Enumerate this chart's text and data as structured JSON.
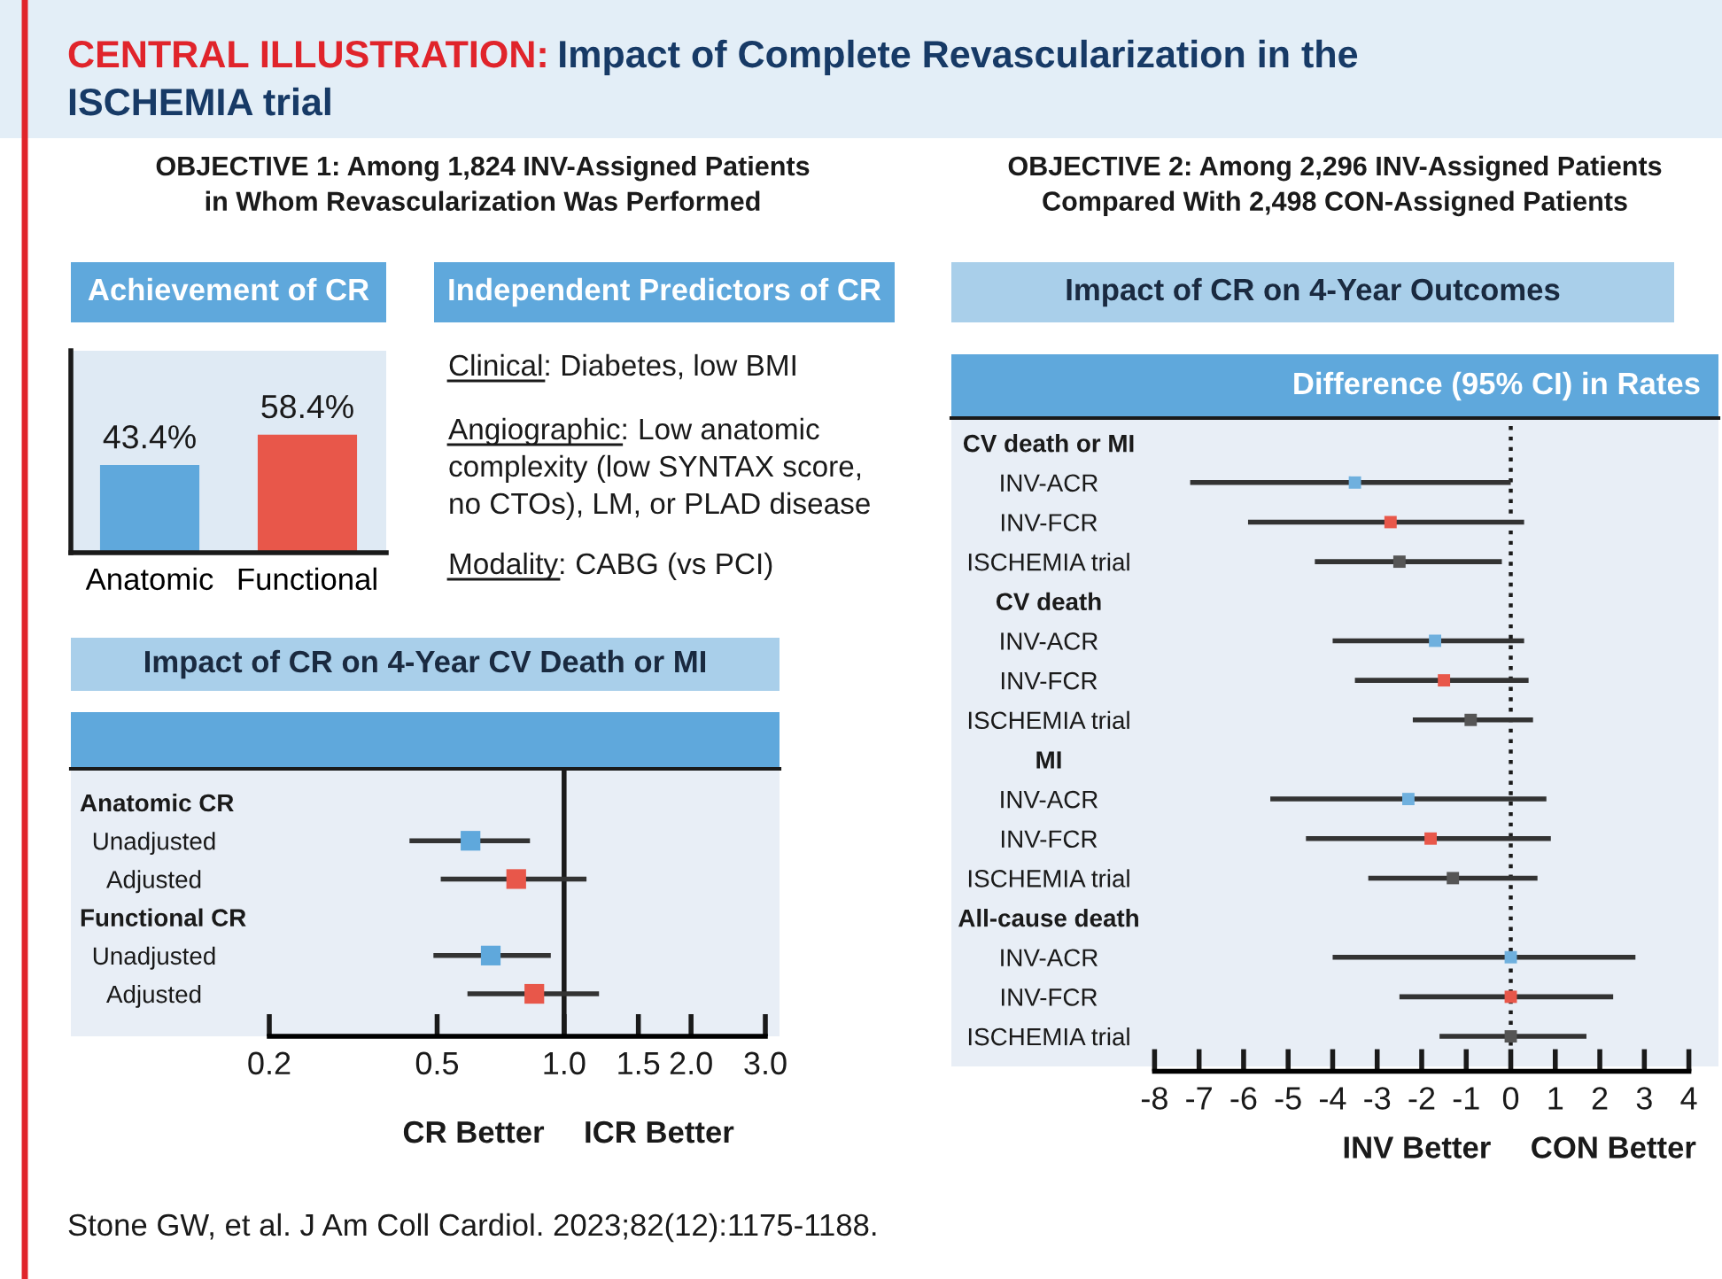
{
  "chart_data": [
    {
      "type": "other",
      "title": "CENTRAL ILLUSTRATION: Impact of Complete Revascularization in the\nISCHEMIA trial",
      "annotations": [
        "Stone GW, et al. J Am Coll Cardiol. 2023;82(12):1175-1188."
      ]
    },
    {
      "type": "bar",
      "subtitle": "OBJECTIVE 1: Among 1,824 INV-Assigned Patients\nin Whom Revascularization Was Performed",
      "title": "Achievement of CR",
      "categories": [
        "Anatomic",
        "Functional"
      ],
      "values": [
        43.4,
        58.4
      ],
      "colors": [
        "#5fa8dc",
        "#e8574a"
      ],
      "value_labels": [
        "43.4%",
        "58.4%"
      ],
      "ylim": [
        0,
        100
      ],
      "tick_labels": "x"
    },
    {
      "type": "other",
      "title": "Independent Predictors of CR",
      "annotations": [
        "Clinical: Diabetes, low BMI",
        "Angiographic: Low anatomic\ncomplexity (low SYNTAX score,\nno CTOs), LM, or PLAD disease",
        "Modality: CABG (vs PCI)"
      ]
    },
    {
      "type": "scatter",
      "orientation": "horizontal",
      "title": "Impact of CR on 4-Year CV Death or MI",
      "categories": [
        "Anatomic CR",
        "Unadjusted",
        "Adjusted",
        "Functional CR",
        "Unadjusted",
        "Adjusted"
      ],
      "values": [
        null,
        0.6,
        0.77,
        null,
        0.67,
        0.85
      ],
      "errors": [
        null,
        [
          0.43,
          0.83
        ],
        [
          0.51,
          1.13
        ],
        null,
        [
          0.49,
          0.93
        ],
        [
          0.59,
          1.21
        ]
      ],
      "colors": [
        null,
        "#5fa8dc",
        "#e8574a",
        null,
        "#5fa8dc",
        "#e8574a"
      ],
      "log": "x",
      "xlim": [
        0.2,
        3.0
      ],
      "xticks": [
        0.2,
        0.5,
        {
          "value": 1.0,
          "label": "1.0"
        },
        1.5,
        {
          "value": 2.0,
          "label": "2.0"
        },
        {
          "value": 3.0,
          "label": "3.0"
        }
      ],
      "ref_lines": [
        {
          "axis": "x",
          "value": 1,
          "color": "#1a1a1a",
          "line_style": "solid"
        }
      ],
      "marker": "square",
      "annotations": [
        "CR Better",
        "ICR Better"
      ]
    },
    {
      "type": "scatter",
      "orientation": "horizontal",
      "subtitle": "OBJECTIVE 2: Among 2,296 INV-Assigned Patients\nCompared With 2,498 CON-Assigned Patients",
      "title": "Impact of CR on 4-Year Outcomes",
      "xlabel": "Difference (95% CI) in Rates",
      "categories": [
        "CV death or MI",
        "INV-ACR",
        "INV-FCR",
        "ISCHEMIA trial",
        "CV death",
        "INV-ACR",
        "INV-FCR",
        "ISCHEMIA trial",
        "MI",
        "INV-ACR",
        "INV-FCR",
        "ISCHEMIA trial",
        "All-cause death",
        "INV-ACR",
        "INV-FCR",
        "ISCHEMIA trial"
      ],
      "values": [
        null,
        -3.5,
        -2.7,
        -2.5,
        null,
        -1.7,
        -1.5,
        -0.9,
        null,
        -2.3,
        -1.8,
        -1.3,
        null,
        0.0,
        0.0,
        0.0
      ],
      "errors": [
        null,
        [
          -7.2,
          0.0
        ],
        [
          -5.9,
          0.3
        ],
        [
          -4.4,
          -0.2
        ],
        null,
        [
          -4.0,
          0.3
        ],
        [
          -3.5,
          0.4
        ],
        [
          -2.2,
          0.5
        ],
        null,
        [
          -5.4,
          0.8
        ],
        [
          -4.6,
          0.9
        ],
        [
          -3.2,
          0.6
        ],
        null,
        [
          -4.0,
          2.8
        ],
        [
          -2.5,
          2.3
        ],
        [
          -1.6,
          1.7
        ]
      ],
      "colors": [
        null,
        "#6fb0de",
        "#e8574a",
        "#555555",
        null,
        "#6fb0de",
        "#e8574a",
        "#555555",
        null,
        "#6fb0de",
        "#e8574a",
        "#555555",
        null,
        "#6fb0de",
        "#e8574a",
        "#555555"
      ],
      "xlim": [
        -8,
        4
      ],
      "xticks": [
        -8,
        -7,
        -6,
        -5,
        -4,
        -3,
        -2,
        -1,
        0,
        1,
        2,
        3,
        4
      ],
      "ref_lines": [
        {
          "axis": "x",
          "value": 0,
          "color": "#1a1a1a",
          "line_style": "dotted"
        }
      ],
      "marker": "square",
      "annotations": [
        "INV Better",
        "CON Better"
      ]
    }
  ]
}
